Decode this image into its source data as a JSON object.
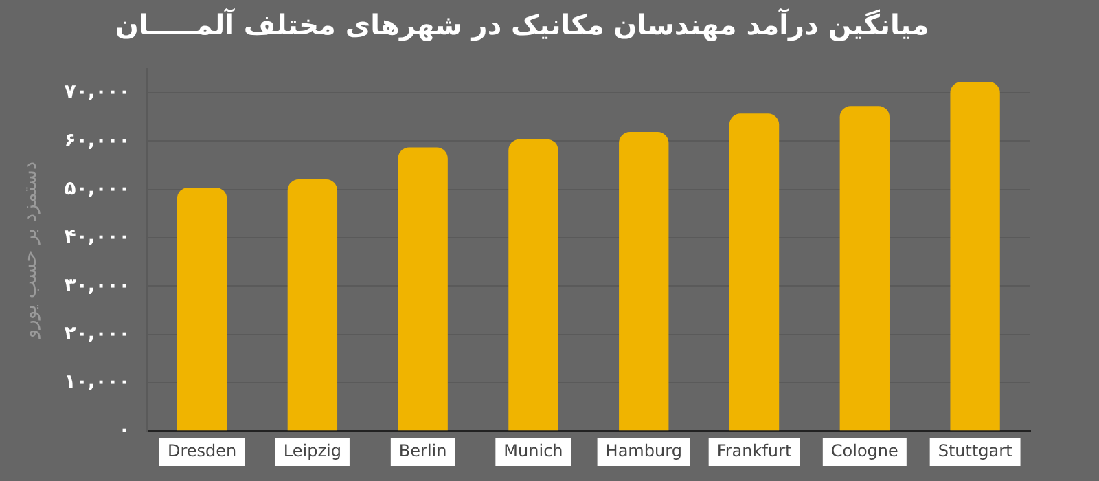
{
  "chart_data": {
    "type": "bar",
    "title": "میانگین درآمد مهندسان مکانیک در شهرهای مختلف آلمـــــان",
    "ylabel": "دستمزد بر حسب یورو",
    "categories": [
      "Dresden",
      "Leipzig",
      "Berlin",
      "Munich",
      "Hamburg",
      "Frankfurt",
      "Cologne",
      "Stuttgart"
    ],
    "values": [
      50400,
      52100,
      58700,
      60400,
      61900,
      65700,
      67300,
      72300
    ],
    "color": "#f0b400",
    "ylim": [
      0,
      75000
    ],
    "yticks": [
      {
        "value": 0,
        "label": "۰"
      },
      {
        "value": 10000,
        "label": "۱۰,۰۰۰"
      },
      {
        "value": 20000,
        "label": "۲۰,۰۰۰"
      },
      {
        "value": 30000,
        "label": "۳۰,۰۰۰"
      },
      {
        "value": 40000,
        "label": "۴۰,۰۰۰"
      },
      {
        "value": 50000,
        "label": "۵۰,۰۰۰"
      },
      {
        "value": 60000,
        "label": "۶۰,۰۰۰"
      },
      {
        "value": 70000,
        "label": "۷۰,۰۰۰"
      }
    ],
    "grid": "y",
    "legend": false
  }
}
